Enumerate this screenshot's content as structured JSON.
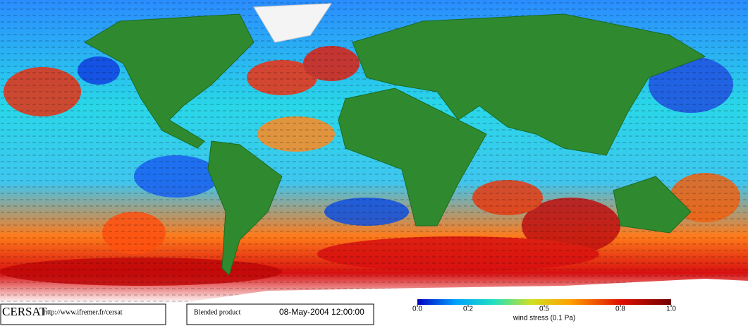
{
  "logo": "CERSAT",
  "url": "http://www.ifremer.fr/cersat",
  "product": "Blended product",
  "date": "08-May-2004 12:00:00",
  "colorbar": {
    "label": "wind stress (0.1 Pa)",
    "ticks": [
      {
        "value": 0,
        "label": "0.0"
      },
      {
        "value": 0.2,
        "label": "0.2"
      },
      {
        "value": 0.5,
        "label": "0.5"
      },
      {
        "value": 0.8,
        "label": "0.8"
      },
      {
        "value": 1,
        "label": "1.0"
      }
    ]
  }
}
